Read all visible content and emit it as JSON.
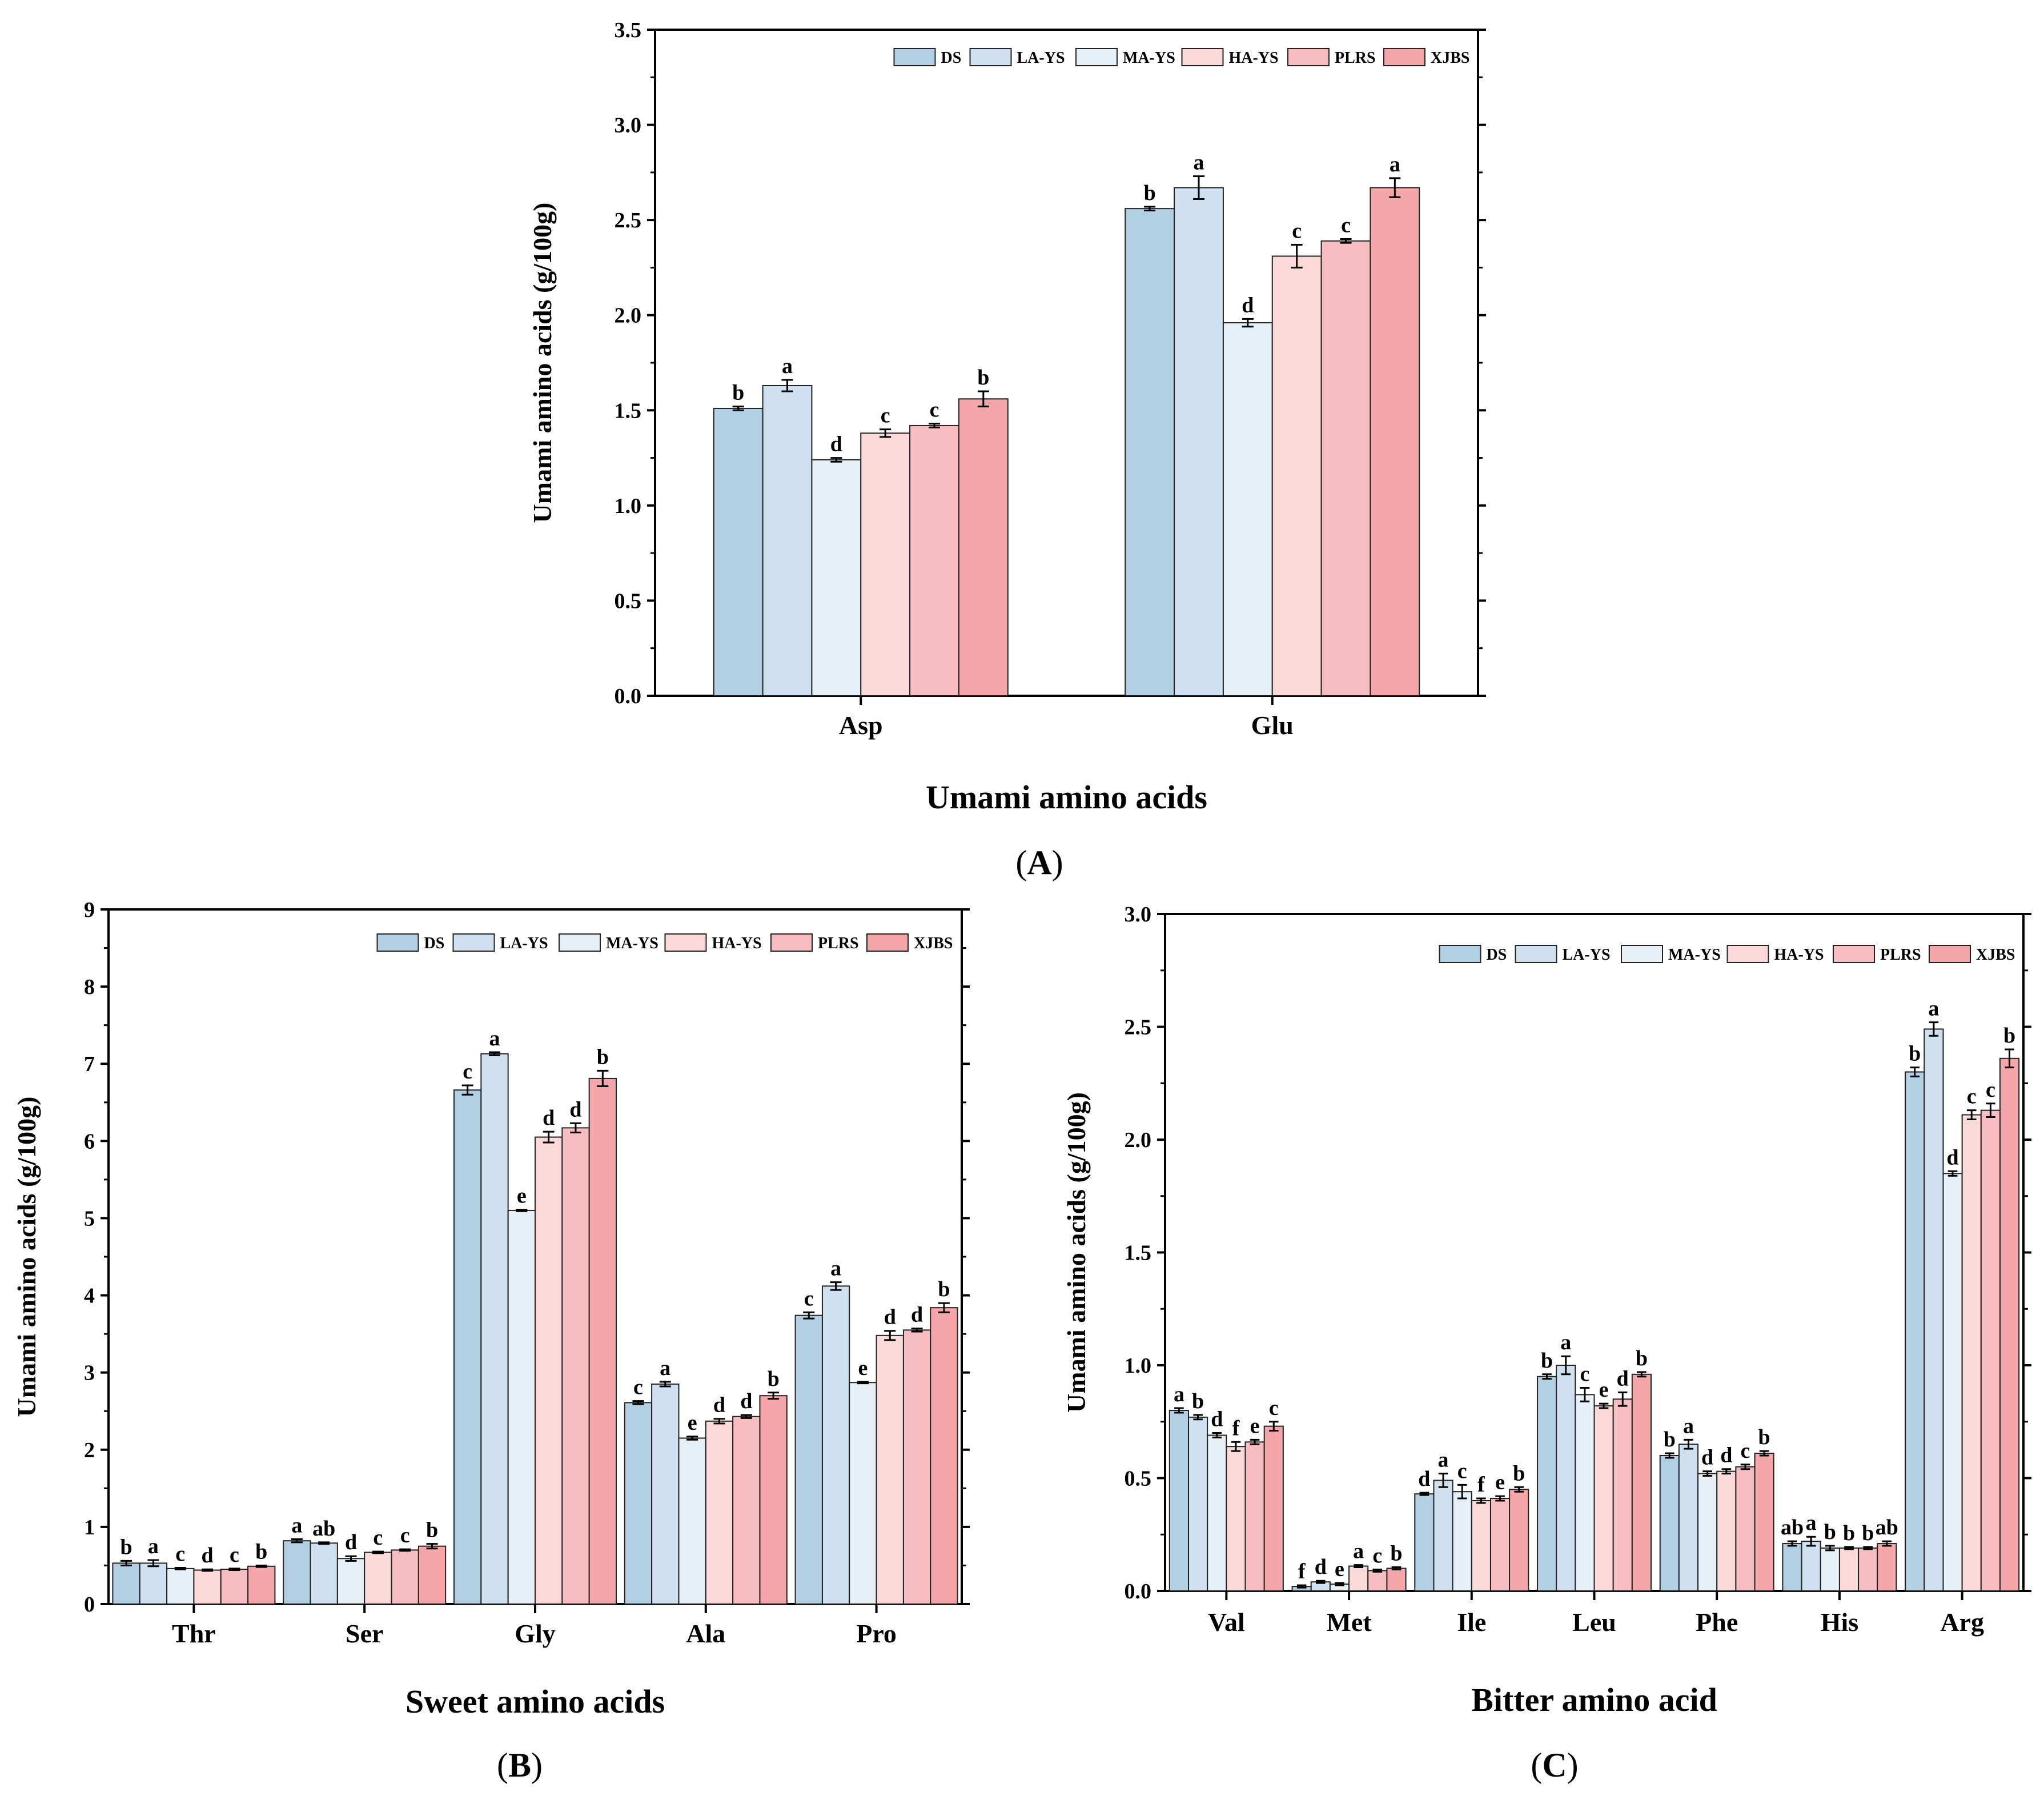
{
  "series_names": [
    "DS",
    "LA-YS",
    "MA-YS",
    "HA-YS",
    "PLRS",
    "XJBS"
  ],
  "series_colors": [
    "#b3cfe4",
    "#cfe1f0",
    "#e7eff7",
    "#fbd9d9",
    "#f7bdc0",
    "#f4a6a9"
  ],
  "chart_data": [
    {
      "type": "bar",
      "panel_label": "A",
      "title": "",
      "xlabel": "Umami amino acids",
      "ylabel": "Umami amino acids (g/100g)",
      "categories": [
        "Asp",
        "Glu"
      ],
      "ylim": [
        0,
        3.5
      ],
      "yticks": [
        "0.0",
        "0.5",
        "1.0",
        "1.5",
        "2.0",
        "2.5",
        "3.0",
        "3.5"
      ],
      "legend_position": "top-right",
      "series": [
        {
          "name": "DS",
          "values": [
            1.51,
            2.56
          ],
          "errors": [
            0.01,
            0.01
          ],
          "letters": [
            "b",
            "b"
          ]
        },
        {
          "name": "LA-YS",
          "values": [
            1.63,
            2.67
          ],
          "errors": [
            0.03,
            0.06
          ],
          "letters": [
            "a",
            "a"
          ]
        },
        {
          "name": "MA-YS",
          "values": [
            1.24,
            1.96
          ],
          "errors": [
            0.01,
            0.02
          ],
          "letters": [
            "d",
            "d"
          ]
        },
        {
          "name": "HA-YS",
          "values": [
            1.38,
            2.31
          ],
          "errors": [
            0.02,
            0.06
          ],
          "letters": [
            "c",
            "c"
          ]
        },
        {
          "name": "PLRS",
          "values": [
            1.42,
            2.39
          ],
          "errors": [
            0.01,
            0.01
          ],
          "letters": [
            "c",
            "c"
          ]
        },
        {
          "name": "XJBS",
          "values": [
            1.56,
            2.67
          ],
          "errors": [
            0.04,
            0.05
          ],
          "letters": [
            "b",
            "a"
          ]
        }
      ]
    },
    {
      "type": "bar",
      "panel_label": "B",
      "title": "",
      "xlabel": "Sweet amino acids",
      "ylabel": "Umami amino acids (g/100g)",
      "categories": [
        "Thr",
        "Ser",
        "Gly",
        "Ala",
        "Pro"
      ],
      "ylim": [
        0,
        9
      ],
      "yticks": [
        "0",
        "1",
        "2",
        "3",
        "4",
        "5",
        "6",
        "7",
        "8",
        "9"
      ],
      "legend_position": "top-right",
      "series": [
        {
          "name": "DS",
          "values": [
            0.53,
            0.82,
            6.66,
            2.61,
            3.74
          ],
          "errors": [
            0.03,
            0.02,
            0.06,
            0.02,
            0.04
          ],
          "letters": [
            "b",
            "a",
            "c",
            "c",
            "c"
          ]
        },
        {
          "name": "LA-YS",
          "values": [
            0.53,
            0.79,
            7.13,
            2.85,
            4.12
          ],
          "errors": [
            0.04,
            0.01,
            0.02,
            0.03,
            0.05
          ],
          "letters": [
            "a",
            "ab",
            "a",
            "a",
            "a"
          ]
        },
        {
          "name": "MA-YS",
          "values": [
            0.46,
            0.59,
            5.1,
            2.15,
            2.87
          ],
          "errors": [
            0.01,
            0.03,
            0.01,
            0.02,
            0.01
          ],
          "letters": [
            "c",
            "d",
            "e",
            "e",
            "e"
          ]
        },
        {
          "name": "HA-YS",
          "values": [
            0.44,
            0.67,
            6.05,
            2.37,
            3.48
          ],
          "errors": [
            0.01,
            0.01,
            0.07,
            0.03,
            0.06
          ],
          "letters": [
            "d",
            "c",
            "d",
            "d",
            "d"
          ]
        },
        {
          "name": "PLRS",
          "values": [
            0.45,
            0.7,
            6.17,
            2.43,
            3.55
          ],
          "errors": [
            0.01,
            0.01,
            0.06,
            0.02,
            0.02
          ],
          "letters": [
            "c",
            "c",
            "d",
            "d",
            "d"
          ]
        },
        {
          "name": "XJBS",
          "values": [
            0.49,
            0.75,
            6.81,
            2.7,
            3.84
          ],
          "errors": [
            0.01,
            0.03,
            0.1,
            0.04,
            0.06
          ],
          "letters": [
            "b",
            "b",
            "b",
            "b",
            "b"
          ]
        }
      ]
    },
    {
      "type": "bar",
      "panel_label": "C",
      "title": "",
      "xlabel": "Bitter amino acid",
      "ylabel": "Umami amino acids (g/100g)",
      "categories": [
        "Val",
        "Met",
        "Ile",
        "Leu",
        "Phe",
        "His",
        "Arg"
      ],
      "ylim": [
        0,
        3.0
      ],
      "yticks": [
        "0.0",
        "0.5",
        "1.0",
        "1.5",
        "2.0",
        "2.5",
        "3.0"
      ],
      "legend_position": "top-right",
      "series": [
        {
          "name": "DS",
          "values": [
            0.8,
            0.02,
            0.43,
            0.95,
            0.6,
            0.21,
            2.3
          ],
          "errors": [
            0.01,
            0.005,
            0.005,
            0.01,
            0.01,
            0.01,
            0.02
          ],
          "letters": [
            "a",
            "f",
            "d",
            "b",
            "b",
            "ab",
            "b"
          ]
        },
        {
          "name": "LA-YS",
          "values": [
            0.77,
            0.04,
            0.49,
            1.0,
            0.65,
            0.22,
            2.49
          ],
          "errors": [
            0.01,
            0.005,
            0.03,
            0.04,
            0.02,
            0.02,
            0.03
          ],
          "letters": [
            "b",
            "d",
            "a",
            "a",
            "a",
            "a",
            "a"
          ]
        },
        {
          "name": "MA-YS",
          "values": [
            0.69,
            0.03,
            0.44,
            0.87,
            0.52,
            0.19,
            1.85
          ],
          "errors": [
            0.01,
            0.005,
            0.03,
            0.03,
            0.01,
            0.01,
            0.01
          ],
          "letters": [
            "d",
            "e",
            "c",
            "c",
            "d",
            "b",
            "d"
          ]
        },
        {
          "name": "HA-YS",
          "values": [
            0.64,
            0.11,
            0.4,
            0.82,
            0.53,
            0.19,
            2.11
          ],
          "errors": [
            0.02,
            0.005,
            0.01,
            0.01,
            0.01,
            0.005,
            0.02
          ],
          "letters": [
            "f",
            "a",
            "f",
            "e",
            "d",
            "b",
            "c"
          ]
        },
        {
          "name": "PLRS",
          "values": [
            0.66,
            0.09,
            0.41,
            0.85,
            0.55,
            0.19,
            2.13
          ],
          "errors": [
            0.01,
            0.005,
            0.01,
            0.03,
            0.01,
            0.005,
            0.03
          ],
          "letters": [
            "e",
            "c",
            "e",
            "d",
            "c",
            "b",
            "c"
          ]
        },
        {
          "name": "XJBS",
          "values": [
            0.73,
            0.1,
            0.45,
            0.96,
            0.61,
            0.21,
            2.36
          ],
          "errors": [
            0.02,
            0.005,
            0.01,
            0.01,
            0.01,
            0.01,
            0.04
          ],
          "letters": [
            "c",
            "b",
            "b",
            "b",
            "b",
            "ab",
            "b"
          ]
        }
      ]
    }
  ]
}
